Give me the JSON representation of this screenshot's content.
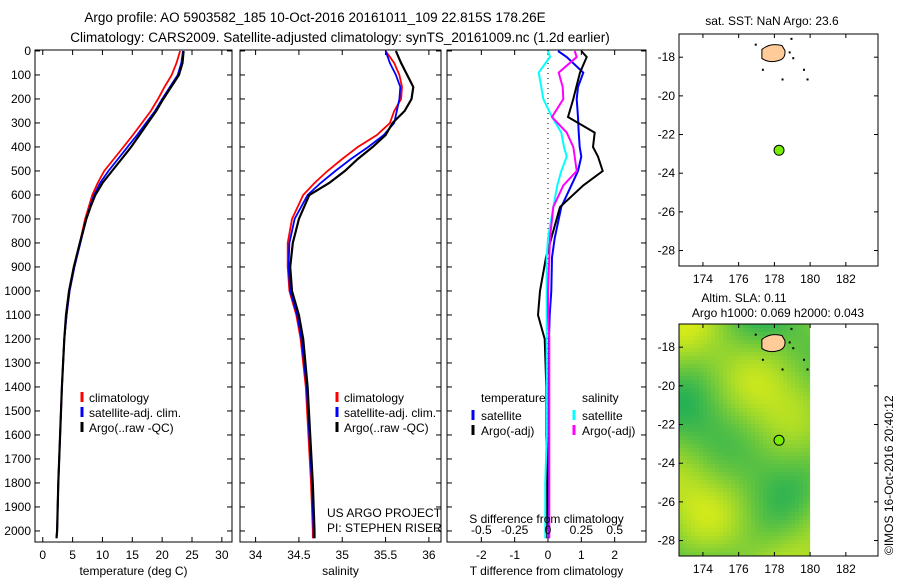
{
  "title": {
    "line1": "Argo profile: AO 5903582_185 10-Oct-2016 20161011_109 22.815S 178.26E",
    "line2": "Climatology: CARS2009. Satellite-adjusted climatology: synTS_20161009.nc (1.2d earlier)"
  },
  "colors": {
    "climatology": "#ff0000",
    "satellite": "#0000ff",
    "argo": "#000000",
    "sal_satellite": "#00ffff",
    "sal_argo": "#ff00ff",
    "land": "#ffcc99",
    "float_marker": "#77ee00"
  },
  "chart_data": [
    {
      "type": "line",
      "name": "temperature-profile",
      "xlabel": "temperature (deg C)",
      "ylabel": "",
      "xlim": [
        -1.3,
        31.7
      ],
      "ylim": [
        2046,
        -4
      ],
      "xticks": [
        0,
        5,
        10,
        15,
        20,
        25,
        30
      ],
      "yticks": [
        0,
        100,
        200,
        300,
        400,
        500,
        600,
        700,
        800,
        900,
        1000,
        1100,
        1200,
        1300,
        1400,
        1500,
        1600,
        1700,
        1800,
        1900,
        2000
      ],
      "depth": [
        0,
        50,
        100,
        150,
        200,
        250,
        300,
        350,
        400,
        450,
        500,
        550,
        600,
        650,
        700,
        800,
        900,
        1000,
        1100,
        1200,
        1400,
        1600,
        1800,
        2000,
        2030
      ],
      "series": [
        {
          "name": "climatology",
          "values": [
            23.0,
            22.4,
            21.6,
            20.4,
            19.3,
            18.1,
            16.6,
            15.1,
            13.5,
            11.9,
            10.3,
            9.2,
            8.3,
            7.7,
            7.1,
            6.2,
            5.3,
            4.5,
            4.0,
            3.6,
            3.2,
            2.9,
            2.6,
            2.4,
            2.3
          ]
        },
        {
          "name": "satellite-adj. clim.",
          "values": [
            23.5,
            23.2,
            22.6,
            21.3,
            20.0,
            18.8,
            17.3,
            15.8,
            14.2,
            12.6,
            11.0,
            9.6,
            8.6,
            7.9,
            7.3,
            6.3,
            5.3,
            4.5,
            4.0,
            3.6,
            3.2,
            2.9,
            2.6,
            2.4,
            2.3
          ]
        },
        {
          "name": "Argo(..raw -QC)",
          "values": [
            23.6,
            23.4,
            22.8,
            21.5,
            20.2,
            19.0,
            17.6,
            16.2,
            14.8,
            13.2,
            11.6,
            10.0,
            8.8,
            8.0,
            7.3,
            6.2,
            5.2,
            4.4,
            3.9,
            3.6,
            3.2,
            2.9,
            2.6,
            2.4,
            2.3
          ]
        }
      ],
      "legend": [
        "climatology",
        "satellite-adj. clim.",
        "Argo(..raw -QC)"
      ],
      "legend_position": "lower-center"
    },
    {
      "type": "line",
      "name": "salinity-profile",
      "xlabel": "salinity",
      "xlim": [
        33.82,
        36.14
      ],
      "ylim": [
        2046,
        -4
      ],
      "xticks": [
        34,
        34.5,
        35,
        35.5,
        36
      ],
      "depth": [
        0,
        50,
        100,
        150,
        200,
        250,
        300,
        350,
        400,
        450,
        500,
        550,
        600,
        700,
        800,
        900,
        1000,
        1100,
        1200,
        1400,
        1600,
        1800,
        2000,
        2030
      ],
      "series": [
        {
          "name": "climatology",
          "values": [
            35.5,
            35.6,
            35.66,
            35.69,
            35.68,
            35.6,
            35.55,
            35.4,
            35.18,
            35.0,
            34.83,
            34.68,
            34.55,
            34.42,
            34.37,
            34.37,
            34.39,
            34.47,
            34.52,
            34.58,
            34.61,
            34.64,
            34.66,
            34.66
          ]
        },
        {
          "name": "satellite-adj. clim.",
          "values": [
            35.5,
            35.55,
            35.62,
            35.67,
            35.66,
            35.63,
            35.6,
            35.48,
            35.3,
            35.1,
            34.92,
            34.75,
            34.6,
            34.45,
            34.39,
            34.38,
            34.4,
            34.48,
            34.53,
            34.59,
            34.62,
            34.65,
            34.67,
            34.67
          ]
        },
        {
          "name": "Argo(..raw -QC)",
          "values": [
            35.62,
            35.68,
            35.75,
            35.82,
            35.8,
            35.72,
            35.58,
            35.5,
            35.35,
            35.18,
            35.03,
            34.85,
            34.62,
            34.5,
            34.43,
            34.4,
            34.42,
            34.5,
            34.55,
            34.6,
            34.63,
            34.66,
            34.68,
            34.68
          ]
        }
      ],
      "legend": [
        "climatology",
        "satellite-adj. clim.",
        "Argo(..raw -QC)"
      ],
      "annotations": [
        "US ARGO PROJECT",
        "PI: STEPHEN RISER"
      ]
    },
    {
      "type": "line",
      "name": "difference-profile",
      "xlabel": "T difference from climatology",
      "x2label": "S difference from climatology",
      "xlim": [
        -3.03,
        2.94
      ],
      "x2lim": [
        -0.7575,
        0.735
      ],
      "ylim": [
        2046,
        -4
      ],
      "xticks": [
        -2,
        -1,
        0,
        1,
        2
      ],
      "x2ticks": [
        -0.5,
        -0.25,
        0,
        0.25,
        0.5
      ],
      "x2ticklabels": [
        "-0.5",
        "-0.25",
        "0",
        "0.25",
        "0.5"
      ],
      "depth": [
        0,
        25,
        90,
        150,
        200,
        275,
        340,
        400,
        440,
        500,
        560,
        650,
        780,
        860,
        1000,
        1100,
        1200,
        1400,
        1600,
        1800,
        2000,
        2030
      ],
      "series": [
        {
          "name": "temperature satellite",
          "axis": "T",
          "values": [
            0.3,
            0.56,
            1.06,
            0.9,
            0.86,
            0.9,
            0.92,
            0.95,
            1.0,
            0.9,
            0.7,
            0.4,
            0.2,
            0.12,
            0.1,
            0.05,
            0.03,
            0.02,
            0.02,
            0.01,
            0.02,
            0.02
          ]
        },
        {
          "name": "temperature Argo(-adj)",
          "axis": "T",
          "values": [
            1.0,
            1.16,
            0.96,
            0.85,
            0.76,
            0.6,
            1.4,
            1.35,
            1.5,
            1.64,
            1.06,
            0.36,
            0.1,
            -0.06,
            -0.24,
            -0.3,
            -0.1,
            -0.05,
            -0.05,
            -0.03,
            -0.05,
            -0.05
          ]
        },
        {
          "name": "salinity satellite",
          "axis": "S",
          "values": [
            0.0,
            0.015,
            -0.07,
            -0.05,
            -0.035,
            0.03,
            0.1,
            0.12,
            0.14,
            0.1,
            0.07,
            0.04,
            0.0,
            -0.01,
            -0.01,
            -0.01,
            -0.01,
            -0.01,
            -0.01,
            -0.02,
            -0.02,
            -0.02
          ]
        },
        {
          "name": "salinity Argo(-adj)",
          "axis": "S",
          "values": [
            0.2,
            0.215,
            0.08,
            0.11,
            0.115,
            0.03,
            0.14,
            0.19,
            0.2,
            0.215,
            0.115,
            0.04,
            0.015,
            0.01,
            0.0,
            0.0,
            0.01,
            0.01,
            0.01,
            0.01,
            0.01,
            0.01
          ]
        }
      ],
      "legend": {
        "temperature_title": "temperature",
        "salinity_title": "salinity",
        "satellite": "satellite",
        "argo": "Argo(-adj)"
      }
    },
    {
      "type": "scatter",
      "name": "sst-map",
      "title": "sat. SST: NaN Argo: 23.6",
      "xlim": [
        172.66,
        183.8
      ],
      "ylim": [
        -28.8,
        -16.8
      ],
      "xticks": [
        174,
        176,
        178,
        180,
        182
      ],
      "yticks": [
        -18,
        -20,
        -22,
        -24,
        -26,
        -28
      ],
      "points": [
        {
          "lon": 178.26,
          "lat": -22.815
        }
      ]
    },
    {
      "type": "heatmap",
      "name": "sla-map",
      "title": "Altim. SLA: 0.11",
      "subtitle": "Argo h1000: 0.069 h2000: 0.043",
      "xlim": [
        172.66,
        183.8
      ],
      "ylim": [
        -28.8,
        -16.8
      ],
      "xticks": [
        174,
        176,
        178,
        180,
        182
      ],
      "yticks": [
        -18,
        -20,
        -22,
        -24,
        -26,
        -28
      ],
      "points": [
        {
          "lon": 178.26,
          "lat": -22.815
        }
      ],
      "data_extent_lon_max": 180
    }
  ],
  "credit": "©IMOS 16-Oct-2016 20:40:12"
}
